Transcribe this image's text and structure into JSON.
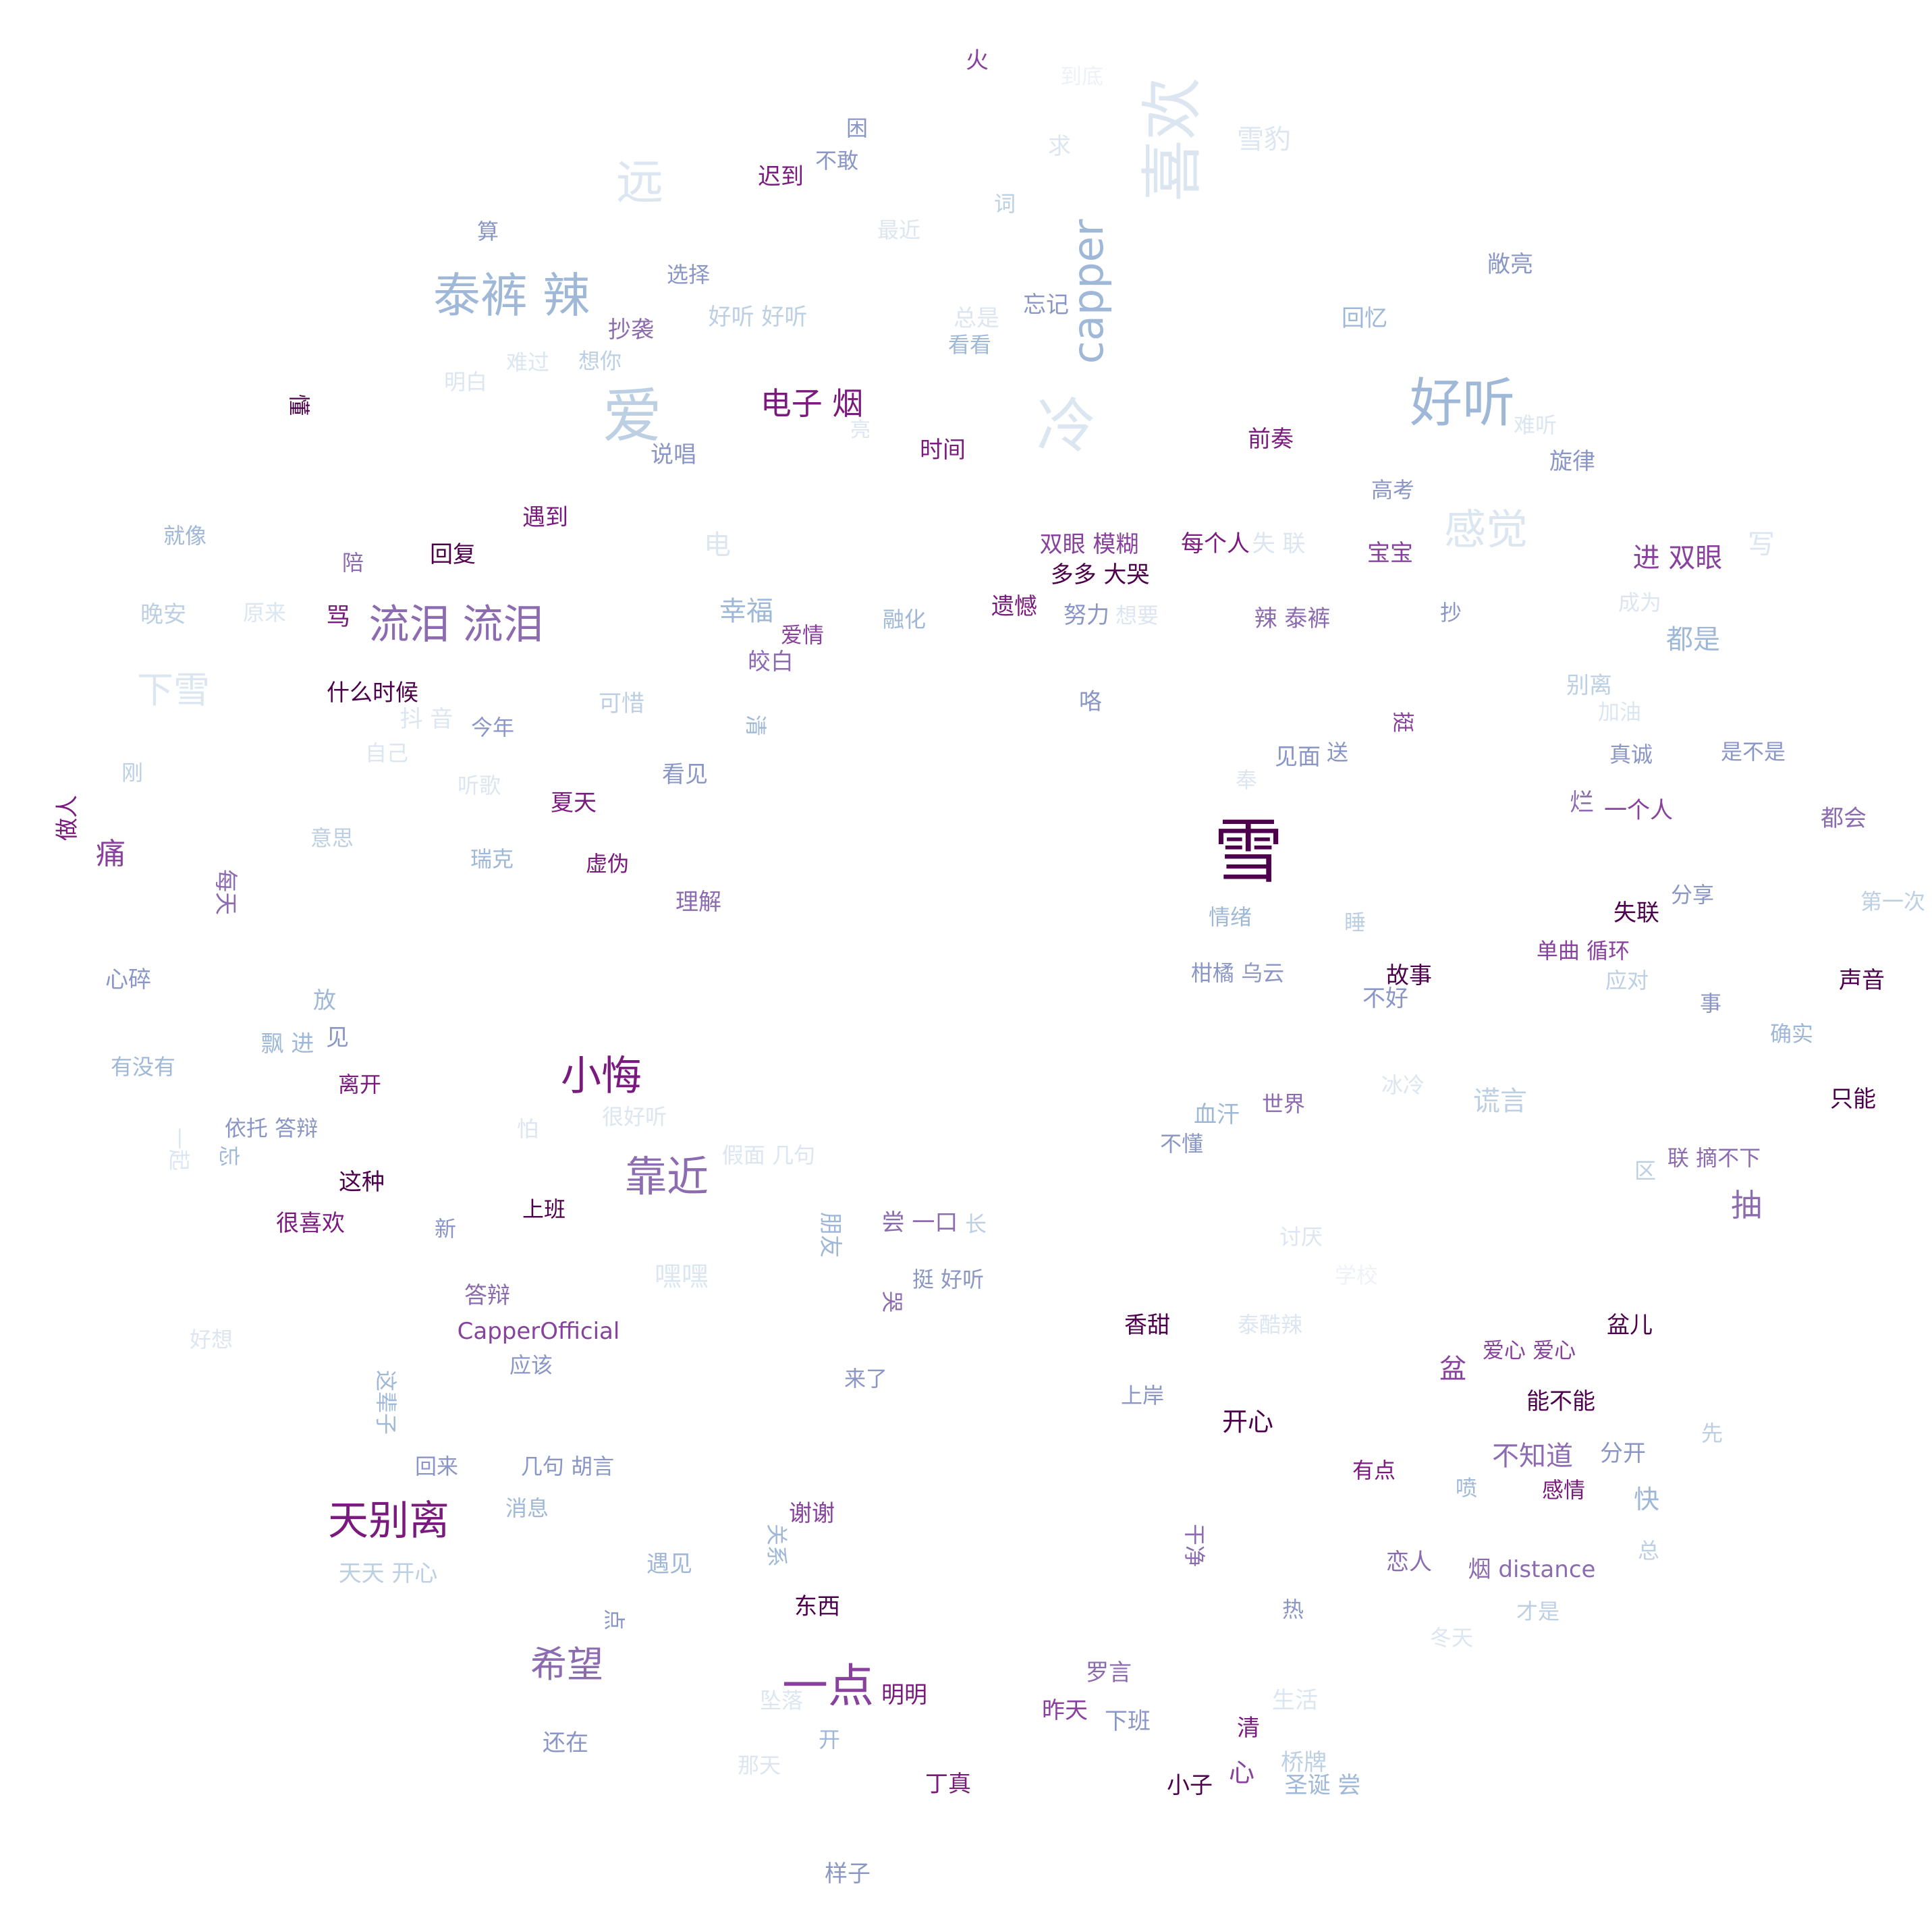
{
  "palette": {
    "c0": "#eef2f8",
    "c1": "#dce6f1",
    "c2": "#bccfe3",
    "c3": "#9fb8d7",
    "c4": "#8a96c6",
    "c5": "#8c6bb1",
    "c6": "#88419d",
    "c7": "#7a1a7e",
    "c8": "#4d004b"
  },
  "words": [
    {
      "text": "雪",
      "c": "c8"
    },
    {
      "text": "喜欢",
      "c": "c1"
    },
    {
      "text": "capper",
      "c": "c3"
    },
    {
      "text": "好听",
      "c": "c3"
    },
    {
      "text": "冷",
      "c": "c1"
    },
    {
      "text": "爱",
      "c": "c2"
    },
    {
      "text": "远",
      "c": "c1"
    },
    {
      "text": "泰裤 辣",
      "c": "c3"
    },
    {
      "text": "流泪 流泪",
      "c": "c5"
    },
    {
      "text": "小悔",
      "c": "c7"
    },
    {
      "text": "靠近",
      "c": "c5"
    },
    {
      "text": "天别离",
      "c": "c7"
    },
    {
      "text": "一点",
      "c": "c6"
    },
    {
      "text": "希望",
      "c": "c5"
    },
    {
      "text": "感觉",
      "c": "c1"
    },
    {
      "text": "电子 烟",
      "c": "c7"
    },
    {
      "text": "火",
      "c": "c6"
    },
    {
      "text": "到底",
      "c": "c0"
    },
    {
      "text": "困",
      "c": "c4"
    },
    {
      "text": "不敢",
      "c": "c4"
    },
    {
      "text": "迟到",
      "c": "c7"
    },
    {
      "text": "求",
      "c": "c1"
    },
    {
      "text": "雪豹",
      "c": "c1"
    },
    {
      "text": "词",
      "c": "c2"
    },
    {
      "text": "最近",
      "c": "c1"
    },
    {
      "text": "算",
      "c": "c4"
    },
    {
      "text": "选择",
      "c": "c4"
    },
    {
      "text": "敞亮",
      "c": "c4"
    },
    {
      "text": "忘记",
      "c": "c4"
    },
    {
      "text": "好听 好听",
      "c": "c2"
    },
    {
      "text": "总是",
      "c": "c1"
    },
    {
      "text": "看看",
      "c": "c3"
    },
    {
      "text": "抄袭",
      "c": "c5"
    },
    {
      "text": "回忆",
      "c": "c3"
    },
    {
      "text": "明白",
      "c": "c1"
    },
    {
      "text": "难过",
      "c": "c1"
    },
    {
      "text": "想你",
      "c": "c2"
    },
    {
      "text": "懂",
      "c": "c8"
    },
    {
      "text": "难听",
      "c": "c1"
    },
    {
      "text": "说唱",
      "c": "c4"
    },
    {
      "text": "时间",
      "c": "c7"
    },
    {
      "text": "前奏",
      "c": "c7"
    },
    {
      "text": "旋律",
      "c": "c4"
    },
    {
      "text": "遇到",
      "c": "c7"
    },
    {
      "text": "高考",
      "c": "c4"
    },
    {
      "text": "就像",
      "c": "c3"
    },
    {
      "text": "回复",
      "c": "c8"
    },
    {
      "text": "陪",
      "c": "c5"
    },
    {
      "text": "电",
      "c": "c1"
    },
    {
      "text": "双眼 模糊",
      "c": "c6"
    },
    {
      "text": "每个人",
      "c": "c7"
    },
    {
      "text": "失 联",
      "c": "c1"
    },
    {
      "text": "宝宝",
      "c": "c6"
    },
    {
      "text": "进 双眼",
      "c": "c6"
    },
    {
      "text": "写",
      "c": "c1"
    },
    {
      "text": "多多 大哭",
      "c": "c8"
    },
    {
      "text": "晚安",
      "c": "c2"
    },
    {
      "text": "原来",
      "c": "c1"
    },
    {
      "text": "骂",
      "c": "c7"
    },
    {
      "text": "幸福",
      "c": "c3"
    },
    {
      "text": "融化",
      "c": "c3"
    },
    {
      "text": "遗憾",
      "c": "c7"
    },
    {
      "text": "努力",
      "c": "c4"
    },
    {
      "text": "想要",
      "c": "c1"
    },
    {
      "text": "辣 泰裤",
      "c": "c5"
    },
    {
      "text": "抄",
      "c": "c4"
    },
    {
      "text": "成为",
      "c": "c1"
    },
    {
      "text": "都是",
      "c": "c3"
    },
    {
      "text": "爱情",
      "c": "c6"
    },
    {
      "text": "皎白",
      "c": "c5"
    },
    {
      "text": "下雪",
      "c": "c1"
    },
    {
      "text": "什么时候",
      "c": "c8"
    },
    {
      "text": "抖 音",
      "c": "c1"
    },
    {
      "text": "今年",
      "c": "c4"
    },
    {
      "text": "可惜",
      "c": "c2"
    },
    {
      "text": "清",
      "c": "c3"
    },
    {
      "text": "咯",
      "c": "c4"
    },
    {
      "text": "挺",
      "c": "c6"
    },
    {
      "text": "别离",
      "c": "c2"
    },
    {
      "text": "加油",
      "c": "c1"
    },
    {
      "text": "刚",
      "c": "c2"
    },
    {
      "text": "自己",
      "c": "c1"
    },
    {
      "text": "听歌",
      "c": "c1"
    },
    {
      "text": "看见",
      "c": "c4"
    },
    {
      "text": "奉",
      "c": "c1"
    },
    {
      "text": "见面",
      "c": "c4"
    },
    {
      "text": "送",
      "c": "c4"
    },
    {
      "text": "真诚",
      "c": "c4"
    },
    {
      "text": "是不是",
      "c": "c4"
    },
    {
      "text": "做人",
      "c": "c7"
    },
    {
      "text": "夏天",
      "c": "c7"
    },
    {
      "text": "烂",
      "c": "c5"
    },
    {
      "text": "一个人",
      "c": "c6"
    },
    {
      "text": "都会",
      "c": "c5"
    },
    {
      "text": "痛",
      "c": "c6"
    },
    {
      "text": "意思",
      "c": "c2"
    },
    {
      "text": "瑞克",
      "c": "c3"
    },
    {
      "text": "虚伪",
      "c": "c7"
    },
    {
      "text": "每天",
      "c": "c5"
    },
    {
      "text": "理解",
      "c": "c5"
    },
    {
      "text": "情绪",
      "c": "c3"
    },
    {
      "text": "睡",
      "c": "c2"
    },
    {
      "text": "分享",
      "c": "c4"
    },
    {
      "text": "第一次",
      "c": "c2"
    },
    {
      "text": "失联",
      "c": "c8"
    },
    {
      "text": "单曲 循环",
      "c": "c6"
    },
    {
      "text": "心碎",
      "c": "c4"
    },
    {
      "text": "柑橘 乌云",
      "c": "c4"
    },
    {
      "text": "故事",
      "c": "c8"
    },
    {
      "text": "不好",
      "c": "c4"
    },
    {
      "text": "应对",
      "c": "c2"
    },
    {
      "text": "声音",
      "c": "c8"
    },
    {
      "text": "放",
      "c": "c3"
    },
    {
      "text": "事",
      "c": "c4"
    },
    {
      "text": "见",
      "c": "c4"
    },
    {
      "text": "飘 进",
      "c": "c3"
    },
    {
      "text": "确实",
      "c": "c3"
    },
    {
      "text": "有没有",
      "c": "c3"
    },
    {
      "text": "离开",
      "c": "c7"
    },
    {
      "text": "冰冷",
      "c": "c1"
    },
    {
      "text": "谎言",
      "c": "c2"
    },
    {
      "text": "世界",
      "c": "c5"
    },
    {
      "text": "血汗",
      "c": "c3"
    },
    {
      "text": "只能",
      "c": "c8"
    },
    {
      "text": "一起",
      "c": "c1"
    },
    {
      "text": "依托 答辩",
      "c": "c4"
    },
    {
      "text": "怕",
      "c": "c1"
    },
    {
      "text": "很好听",
      "c": "c1"
    },
    {
      "text": "不懂",
      "c": "c4"
    },
    {
      "text": "忘",
      "c": "c3"
    },
    {
      "text": "假面 几句",
      "c": "c1"
    },
    {
      "text": "联 摘不下",
      "c": "c5"
    },
    {
      "text": "区",
      "c": "c2"
    },
    {
      "text": "这种",
      "c": "c8"
    },
    {
      "text": "抽",
      "c": "c5"
    },
    {
      "text": "上班",
      "c": "c8"
    },
    {
      "text": "很喜欢",
      "c": "c7"
    },
    {
      "text": "新",
      "c": "c4"
    },
    {
      "text": "尝 一口",
      "c": "c5"
    },
    {
      "text": "长",
      "c": "c2"
    },
    {
      "text": "讨厌",
      "c": "c1"
    },
    {
      "text": "学校",
      "c": "c0"
    },
    {
      "text": "朋友",
      "c": "c3"
    },
    {
      "text": "嘿嘿",
      "c": "c1"
    },
    {
      "text": "挺 好听",
      "c": "c4"
    },
    {
      "text": "答辩",
      "c": "c5"
    },
    {
      "text": "哭",
      "c": "c5"
    },
    {
      "text": "好想",
      "c": "c1"
    },
    {
      "text": "CapperOfficial",
      "c": "c6"
    },
    {
      "text": "香甜",
      "c": "c8"
    },
    {
      "text": "泰酷辣",
      "c": "c1"
    },
    {
      "text": "盆儿",
      "c": "c8"
    },
    {
      "text": "爱心 爱心",
      "c": "c6"
    },
    {
      "text": "盆",
      "c": "c6"
    },
    {
      "text": "应该",
      "c": "c4"
    },
    {
      "text": "来了",
      "c": "c4"
    },
    {
      "text": "这辈子",
      "c": "c3"
    },
    {
      "text": "上岸",
      "c": "c4"
    },
    {
      "text": "能不能",
      "c": "c8"
    },
    {
      "text": "开心",
      "c": "c8"
    },
    {
      "text": "先",
      "c": "c2"
    },
    {
      "text": "不知道",
      "c": "c5"
    },
    {
      "text": "分开",
      "c": "c4"
    },
    {
      "text": "回来",
      "c": "c4"
    },
    {
      "text": "几句 胡言",
      "c": "c4"
    },
    {
      "text": "有点",
      "c": "c7"
    },
    {
      "text": "喷",
      "c": "c3"
    },
    {
      "text": "感情",
      "c": "c7"
    },
    {
      "text": "快",
      "c": "c3"
    },
    {
      "text": "谢谢",
      "c": "c6"
    },
    {
      "text": "消息",
      "c": "c3"
    },
    {
      "text": "关系",
      "c": "c3"
    },
    {
      "text": "干净",
      "c": "c5"
    },
    {
      "text": "总",
      "c": "c2"
    },
    {
      "text": "天天 开心",
      "c": "c2"
    },
    {
      "text": "遇见",
      "c": "c3"
    },
    {
      "text": "恋人",
      "c": "c5"
    },
    {
      "text": "烟 distance",
      "c": "c5"
    },
    {
      "text": "东西",
      "c": "c8"
    },
    {
      "text": "热",
      "c": "c4"
    },
    {
      "text": "才是",
      "c": "c2"
    },
    {
      "text": "点",
      "c": "c4"
    },
    {
      "text": "冬天",
      "c": "c1"
    },
    {
      "text": "罗言",
      "c": "c5"
    },
    {
      "text": "明明",
      "c": "c7"
    },
    {
      "text": "生活",
      "c": "c1"
    },
    {
      "text": "昨天",
      "c": "c6"
    },
    {
      "text": "下班",
      "c": "c4"
    },
    {
      "text": "清",
      "c": "c7"
    },
    {
      "text": "还在",
      "c": "c4"
    },
    {
      "text": "开",
      "c": "c3"
    },
    {
      "text": "那天",
      "c": "c1"
    },
    {
      "text": "桥牌",
      "c": "c2"
    },
    {
      "text": "丁真",
      "c": "c7"
    },
    {
      "text": "小子",
      "c": "c8"
    },
    {
      "text": "心",
      "c": "c6"
    },
    {
      "text": "圣诞 尝",
      "c": "c3"
    },
    {
      "text": "样子",
      "c": "c4"
    },
    {
      "text": "坠落",
      "c": "c1"
    },
    {
      "text": "亮",
      "c": "c1"
    }
  ]
}
